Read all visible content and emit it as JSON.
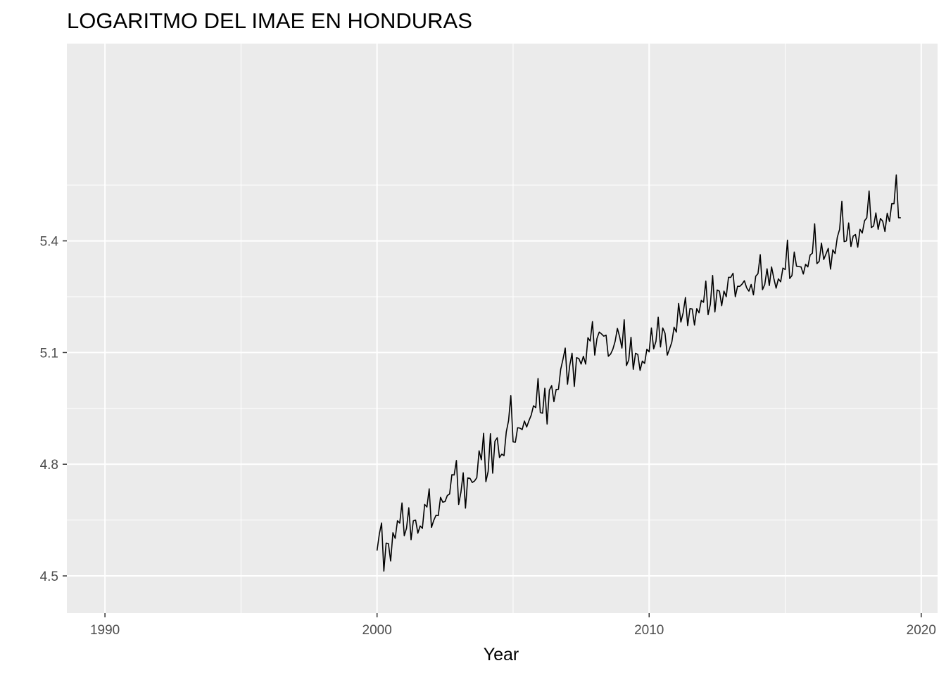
{
  "chart_data": {
    "type": "line",
    "title": "LOGARITMO DEL IMAE EN HONDURAS",
    "xlabel": "Year",
    "ylabel": "",
    "xlim": [
      1988.6,
      2020.6
    ],
    "ylim": [
      4.4,
      5.93
    ],
    "x_ticks": [
      1990,
      2000,
      2010,
      2020
    ],
    "x_tick_labels": [
      "1990",
      "2000",
      "2010",
      "2020"
    ],
    "y_ticks": [
      4.5,
      4.8,
      5.1,
      5.4
    ],
    "y_tick_labels": [
      "4.5",
      "4.8",
      "5.1",
      "5.4"
    ],
    "grid": true,
    "series": [
      {
        "start": 2000.0,
        "step": 0.08333333,
        "values": [
          4.568,
          4.612,
          4.642,
          4.513,
          4.588,
          4.587,
          4.54,
          4.616,
          4.601,
          4.648,
          4.642,
          4.696,
          4.608,
          4.628,
          4.683,
          4.597,
          4.648,
          4.65,
          4.615,
          4.634,
          4.628,
          4.692,
          4.685,
          4.734,
          4.63,
          4.649,
          4.663,
          4.662,
          4.711,
          4.698,
          4.7,
          4.716,
          4.72,
          4.772,
          4.771,
          4.81,
          4.692,
          4.725,
          4.777,
          4.682,
          4.763,
          4.762,
          4.751,
          4.755,
          4.764,
          4.836,
          4.812,
          4.883,
          4.753,
          4.781,
          4.882,
          4.776,
          4.862,
          4.871,
          4.818,
          4.827,
          4.823,
          4.887,
          4.917,
          4.984,
          4.86,
          4.859,
          4.898,
          4.897,
          4.893,
          4.916,
          4.9,
          4.917,
          4.932,
          4.957,
          4.952,
          5.03,
          4.939,
          4.937,
          5.004,
          4.908,
          4.999,
          5.011,
          4.968,
          5.001,
          5.001,
          5.055,
          5.082,
          5.112,
          5.015,
          5.066,
          5.098,
          5.009,
          5.086,
          5.084,
          5.069,
          5.09,
          5.069,
          5.14,
          5.131,
          5.183,
          5.093,
          5.138,
          5.155,
          5.15,
          5.144,
          5.147,
          5.09,
          5.096,
          5.109,
          5.13,
          5.165,
          5.142,
          5.112,
          5.188,
          5.065,
          5.08,
          5.141,
          5.055,
          5.098,
          5.095,
          5.052,
          5.077,
          5.071,
          5.109,
          5.102,
          5.166,
          5.11,
          5.13,
          5.195,
          5.115,
          5.166,
          5.152,
          5.093,
          5.11,
          5.128,
          5.168,
          5.155,
          5.232,
          5.182,
          5.207,
          5.248,
          5.172,
          5.218,
          5.217,
          5.174,
          5.218,
          5.207,
          5.24,
          5.235,
          5.292,
          5.202,
          5.23,
          5.307,
          5.209,
          5.268,
          5.265,
          5.226,
          5.265,
          5.25,
          5.302,
          5.302,
          5.313,
          5.25,
          5.278,
          5.278,
          5.284,
          5.293,
          5.274,
          5.265,
          5.283,
          5.255,
          5.305,
          5.312,
          5.363,
          5.269,
          5.283,
          5.325,
          5.28,
          5.33,
          5.299,
          5.273,
          5.298,
          5.29,
          5.327,
          5.323,
          5.402,
          5.299,
          5.307,
          5.37,
          5.332,
          5.331,
          5.33,
          5.311,
          5.337,
          5.33,
          5.362,
          5.367,
          5.446,
          5.339,
          5.345,
          5.394,
          5.35,
          5.365,
          5.38,
          5.324,
          5.376,
          5.366,
          5.41,
          5.431,
          5.506,
          5.398,
          5.4,
          5.448,
          5.385,
          5.413,
          5.417,
          5.383,
          5.431,
          5.421,
          5.454,
          5.462,
          5.534,
          5.436,
          5.44,
          5.475,
          5.431,
          5.46,
          5.453,
          5.425,
          5.474,
          5.452,
          5.5,
          5.5,
          5.577,
          5.462,
          5.462
        ]
      }
    ]
  }
}
